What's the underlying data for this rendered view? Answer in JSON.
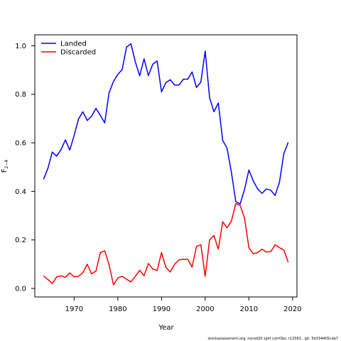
{
  "chart_data": {
    "type": "line",
    "xlabel": "Year",
    "ylabel_main": "F",
    "ylabel_sub": "2−4",
    "xlim": [
      1961,
      2021
    ],
    "ylim": [
      -0.035,
      1.045
    ],
    "xticks": [
      1970,
      1980,
      1990,
      2000,
      2010,
      2020
    ],
    "yticks": [
      0.0,
      0.2,
      0.4,
      0.6,
      0.8,
      1.0
    ],
    "ytick_labels": [
      "0.0",
      "0.2",
      "0.4",
      "0.6",
      "0.8",
      "1.0"
    ],
    "legend_position": "top-left",
    "footnote": "stockassessment.org, nscod20 split corrObs, r12563 , git: 5b334405cda7",
    "series": [
      {
        "name": "Landed",
        "color": "#0000ff",
        "x": [
          1963,
          1964,
          1965,
          1966,
          1967,
          1968,
          1969,
          1970,
          1971,
          1972,
          1973,
          1974,
          1975,
          1976,
          1977,
          1978,
          1979,
          1980,
          1981,
          1982,
          1983,
          1984,
          1985,
          1986,
          1987,
          1988,
          1989,
          1990,
          1991,
          1992,
          1993,
          1994,
          1995,
          1996,
          1997,
          1998,
          1999,
          2000,
          2001,
          2002,
          2003,
          2004,
          2005,
          2006,
          2007,
          2008,
          2009,
          2010,
          2011,
          2012,
          2013,
          2014,
          2015,
          2016,
          2017,
          2018,
          2019
        ],
        "values": [
          0.45,
          0.495,
          0.562,
          0.545,
          0.572,
          0.612,
          0.57,
          0.63,
          0.698,
          0.728,
          0.692,
          0.71,
          0.742,
          0.713,
          0.682,
          0.806,
          0.853,
          0.882,
          0.902,
          0.995,
          1.008,
          0.934,
          0.876,
          0.946,
          0.877,
          0.924,
          0.937,
          0.81,
          0.848,
          0.86,
          0.838,
          0.838,
          0.862,
          0.862,
          0.892,
          0.828,
          0.85,
          0.978,
          0.786,
          0.728,
          0.764,
          0.61,
          0.578,
          0.478,
          0.358,
          0.348,
          0.408,
          0.488,
          0.443,
          0.41,
          0.392,
          0.41,
          0.405,
          0.383,
          0.438,
          0.556,
          0.602
        ]
      },
      {
        "name": "Discarded",
        "color": "#ff0000",
        "x": [
          1963,
          1964,
          1965,
          1966,
          1967,
          1968,
          1969,
          1970,
          1971,
          1972,
          1973,
          1974,
          1975,
          1976,
          1977,
          1978,
          1979,
          1980,
          1981,
          1982,
          1983,
          1984,
          1985,
          1986,
          1987,
          1988,
          1989,
          1990,
          1991,
          1992,
          1993,
          1994,
          1995,
          1996,
          1997,
          1998,
          1999,
          2000,
          2001,
          2002,
          2003,
          2004,
          2005,
          2006,
          2007,
          2008,
          2009,
          2010,
          2011,
          2012,
          2013,
          2014,
          2015,
          2016,
          2017,
          2018,
          2019
        ],
        "values": [
          0.052,
          0.037,
          0.02,
          0.048,
          0.052,
          0.046,
          0.064,
          0.048,
          0.05,
          0.065,
          0.1,
          0.06,
          0.072,
          0.148,
          0.155,
          0.098,
          0.015,
          0.043,
          0.05,
          0.038,
          0.027,
          0.05,
          0.075,
          0.052,
          0.103,
          0.08,
          0.074,
          0.148,
          0.087,
          0.068,
          0.1,
          0.118,
          0.12,
          0.12,
          0.088,
          0.173,
          0.18,
          0.05,
          0.2,
          0.218,
          0.162,
          0.275,
          0.25,
          0.278,
          0.35,
          0.342,
          0.29,
          0.168,
          0.143,
          0.148,
          0.162,
          0.15,
          0.152,
          0.18,
          0.168,
          0.158,
          0.108
        ]
      }
    ]
  }
}
